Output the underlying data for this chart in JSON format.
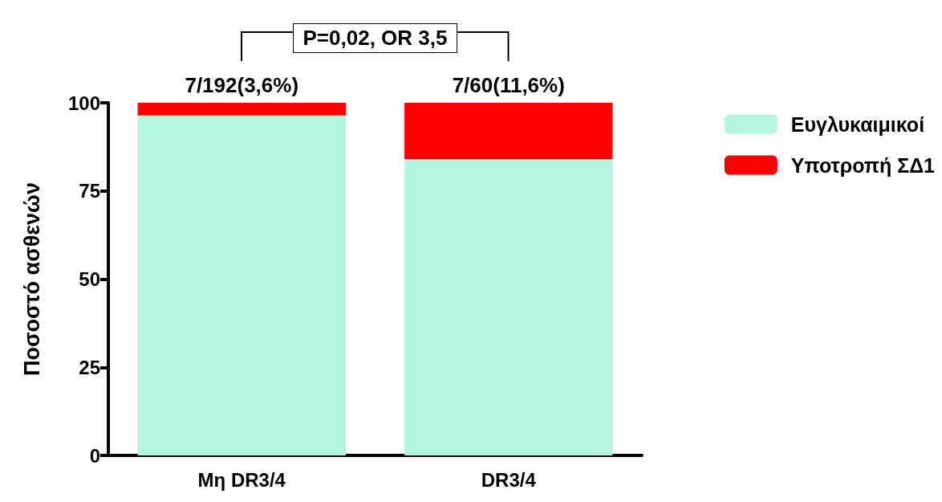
{
  "chart_data": {
    "type": "bar",
    "stacked": true,
    "ylabel": "Ποσοστό ασθενών",
    "categories": [
      "Μη DR3/4",
      "DR3/4"
    ],
    "series": [
      {
        "name": "Ευγλυκαιμικοί",
        "color": "#b3f5dd",
        "values": [
          96.4,
          84
        ]
      },
      {
        "name": "Υποτροπή ΣΔ1",
        "color": "#ff0000",
        "values": [
          3.6,
          16
        ]
      }
    ],
    "ylim": [
      0,
      100
    ],
    "yticks": [
      0,
      25,
      50,
      75,
      100
    ],
    "grid": false,
    "legend": "top right",
    "annotations": [
      "P=0,02, OR 3,5",
      {
        "text": "7/192(3,6%)",
        "x": "Μη DR3/4",
        "y": 100
      },
      {
        "text": "7/60(11,6%)",
        "x": "DR3/4",
        "y": 100
      }
    ]
  }
}
